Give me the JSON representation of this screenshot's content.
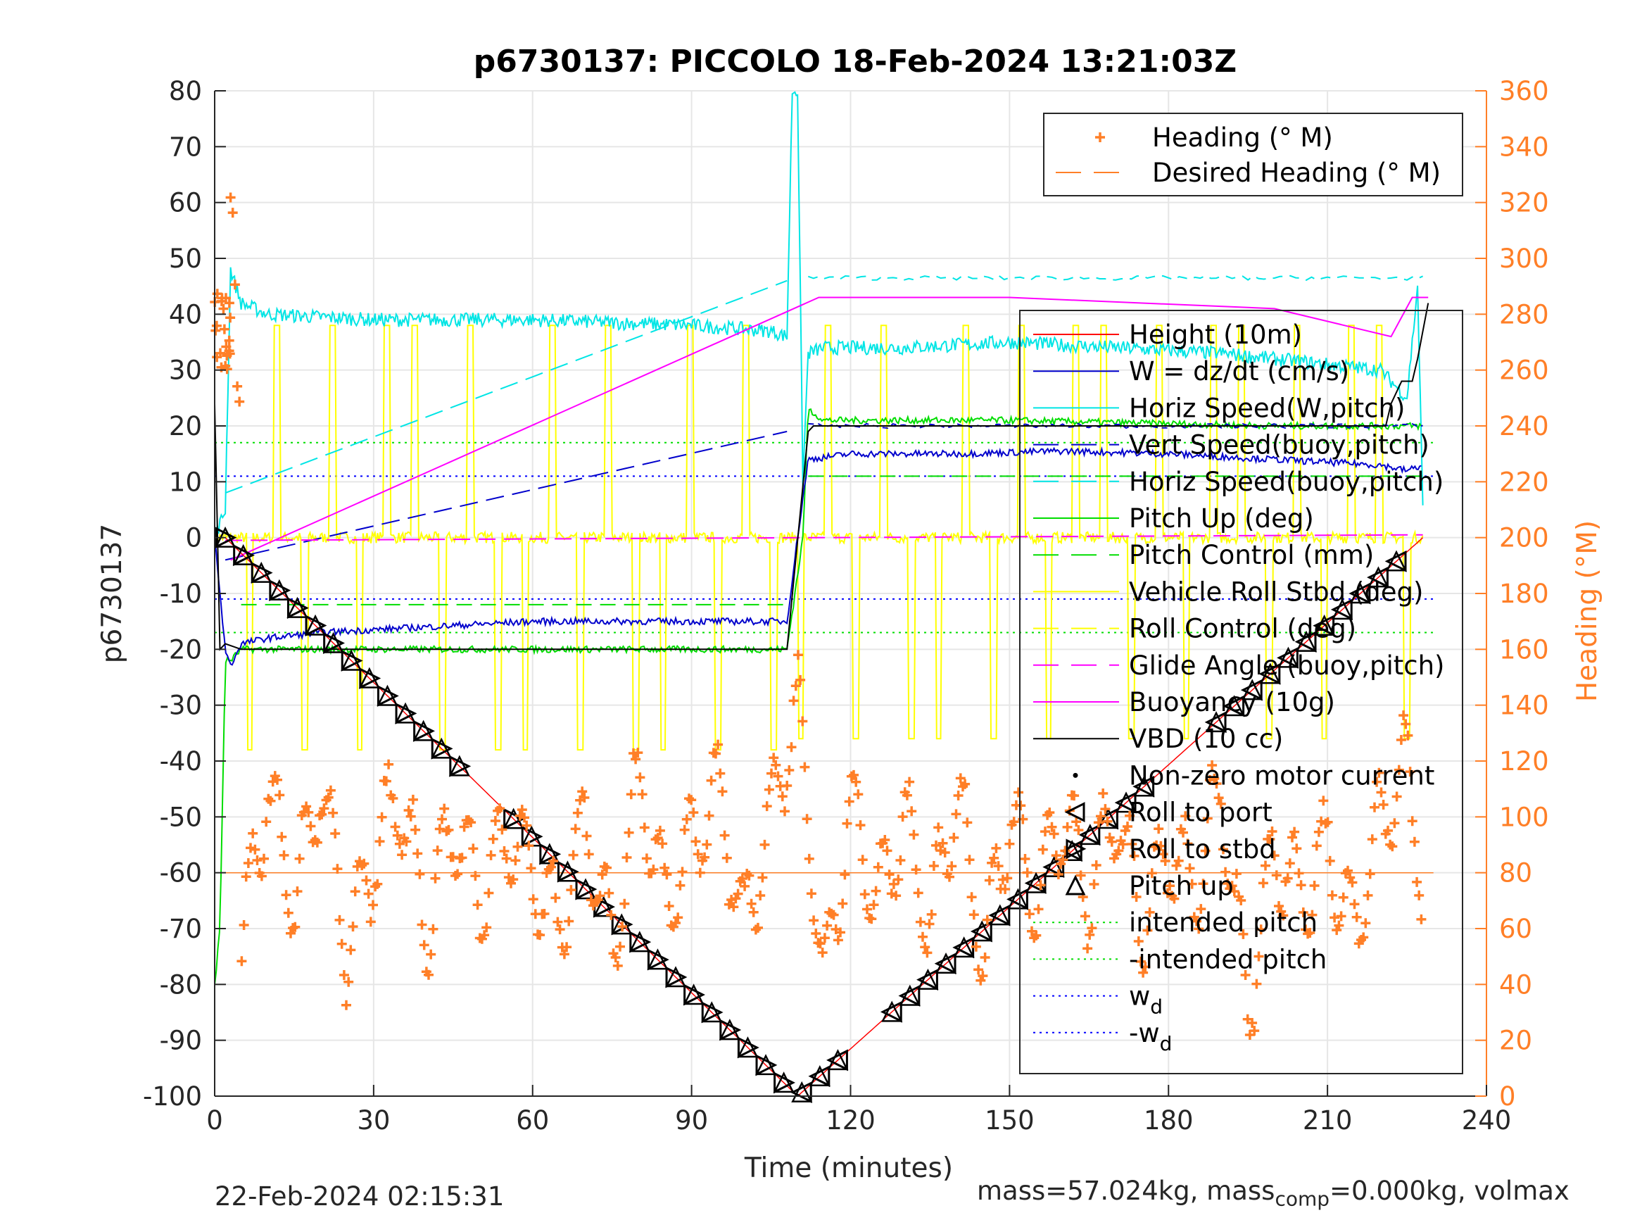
{
  "chart_data": {
    "type": "line",
    "title": "p6730137: PICCOLO 18-Feb-2024 13:21:03Z",
    "xlabel": "Time (minutes)",
    "ylabel": "p6730137",
    "ylabel_right": "Heading (°M)",
    "xlim": [
      0,
      240
    ],
    "ylim": [
      -100,
      80
    ],
    "ylim_right": [
      0,
      360
    ],
    "grid": true,
    "x_ticks": [
      "0",
      "30",
      "60",
      "90",
      "120",
      "150",
      "180",
      "210",
      "240"
    ],
    "y_ticks": [
      "80",
      "70",
      "60",
      "50",
      "40",
      "30",
      "20",
      "10",
      "0",
      "-10",
      "-20",
      "-30",
      "-40",
      "-50",
      "-60",
      "-70",
      "-80",
      "-90",
      "-100"
    ],
    "y_right_ticks": [
      "360",
      "340",
      "320",
      "300",
      "280",
      "260",
      "240",
      "220",
      "200",
      "180",
      "160",
      "140",
      "120",
      "100",
      "80",
      "60",
      "40",
      "20",
      "0"
    ],
    "legend_heading": {
      "placement": "top-right",
      "entries": [
        "Heading (° M)",
        "Desired Heading (° M)"
      ]
    },
    "legend_main": {
      "placement": "right",
      "entries": [
        "Height (10m)",
        "W = dz/dt (cm/s)",
        "Horiz Speed(W,pitch)",
        "Vert Speed(buoy,pitch)",
        "Horiz Speed(buoy,pitch)",
        "Pitch Up (deg)",
        "Pitch Control (mm)",
        "Vehicle Roll Stbd (deg)",
        "Roll Control (deg)",
        "Glide Angle (buoy,pitch)",
        "Buoyancy (10g)",
        "VBD (10 cc)",
        "Non-zero motor current",
        "Roll to port",
        "Roll to stbd",
        "Pitch up",
        "intended pitch",
        "-intended pitch",
        "w_d",
        "-w_d"
      ]
    },
    "colors": {
      "height": "#ff0000",
      "w": "#0000cc",
      "horiz_speed": "#00e5e5",
      "pitch": "#00dd00",
      "roll": "#ffff00",
      "glide": "#ff00ff",
      "buoyancy": "#ff00ff",
      "vbd": "#000000",
      "heading": "#ff7f27",
      "desired_heading": "#ff7f27",
      "wd": "#0000ff"
    },
    "series": [
      {
        "name": "Height (10m)",
        "x": [
          0,
          2,
          10,
          20,
          30,
          40,
          50,
          60,
          70,
          80,
          90,
          100,
          108,
          112,
          120,
          130,
          140,
          150,
          160,
          170,
          180,
          190,
          200,
          210,
          220,
          228,
          230
        ],
        "y": [
          0,
          -0.5,
          -8,
          -19,
          -31,
          -40,
          -50,
          -60,
          -69,
          -78,
          -88,
          -95,
          -100,
          -100,
          -93,
          -80,
          -72,
          -62,
          -57,
          -48,
          -40,
          -30,
          -22,
          -15,
          -5,
          0,
          0
        ]
      },
      {
        "name": "W = dz/dt (cm/s)",
        "x": [
          0,
          2,
          3,
          5,
          10,
          20,
          40,
          60,
          80,
          100,
          108,
          110,
          112,
          120,
          140,
          160,
          180,
          200,
          220,
          225,
          228
        ],
        "y": [
          0,
          -20,
          -23,
          -19,
          -18,
          -17,
          -16,
          -15,
          -15,
          -15,
          -15,
          0,
          14,
          15,
          15,
          15.5,
          15,
          14,
          13,
          12,
          13
        ]
      },
      {
        "name": "Horiz Speed(W,pitch)",
        "x": [
          0,
          2,
          3,
          5,
          10,
          30,
          60,
          90,
          105,
          108,
          109,
          110,
          111,
          112,
          115,
          130,
          150,
          170,
          190,
          210,
          220,
          225,
          227,
          228
        ],
        "y": [
          0,
          5,
          48,
          42,
          40,
          39,
          39,
          38,
          37,
          36,
          80,
          80,
          10,
          33,
          34,
          34,
          35,
          34,
          33,
          31,
          30,
          25,
          45,
          5
        ]
      },
      {
        "name": "Vert Speed(buoy,pitch)",
        "x": [
          2,
          108,
          112,
          228
        ],
        "y": [
          -4,
          19,
          20,
          20
        ]
      },
      {
        "name": "Horiz Speed(buoy,pitch)",
        "x": [
          2,
          108,
          112,
          228
        ],
        "y": [
          8,
          46,
          47,
          46
        ]
      },
      {
        "name": "Pitch Up (deg)",
        "x": [
          0,
          1,
          2,
          3,
          5,
          20,
          60,
          100,
          108,
          111,
          112,
          115,
          150,
          200,
          228
        ],
        "y": [
          -80,
          -70,
          -22,
          -22,
          -20,
          -20,
          -20,
          -20,
          -20,
          0,
          23,
          21,
          21,
          20,
          20
        ]
      },
      {
        "name": "Pitch Control (mm)",
        "x": [
          0,
          108,
          110,
          228
        ],
        "y": [
          -12,
          -12,
          11,
          11
        ]
      },
      {
        "name": "Vehicle Roll Stbd (deg)",
        "x": [
          0,
          228
        ],
        "y": [
          0,
          0
        ]
      },
      {
        "name": "Roll Control (deg)",
        "x": [
          0,
          228
        ],
        "y": [
          0,
          0
        ]
      },
      {
        "name": "Glide Angle (buoy,pitch)",
        "x": [
          2,
          228
        ],
        "y": [
          -0.5,
          0.5
        ]
      },
      {
        "name": "Buoyancy (10g)",
        "x": [
          3,
          114,
          150,
          200,
          222,
          226,
          229
        ],
        "y": [
          -4,
          43,
          43,
          41,
          36,
          43,
          43
        ]
      },
      {
        "name": "VBD (10 cc)",
        "x": [
          0,
          1,
          2,
          5,
          108,
          112,
          113,
          220,
          225,
          228,
          229
        ],
        "y": [
          24,
          -20,
          -19,
          -20,
          -20,
          19,
          20,
          20,
          28,
          28,
          42
        ]
      },
      {
        "name": "intended pitch",
        "x": [
          0,
          230
        ],
        "y": [
          17,
          17
        ]
      },
      {
        "name": "-intended pitch",
        "x": [
          0,
          230
        ],
        "y": [
          -17,
          -17
        ]
      },
      {
        "name": "w_d",
        "x": [
          0,
          230
        ],
        "y": [
          11,
          11
        ]
      },
      {
        "name": "-w_d",
        "x": [
          0,
          230
        ],
        "y": [
          -11,
          -11
        ]
      },
      {
        "name": "Heading (° M)",
        "axis": "right",
        "x": [
          0,
          1,
          2,
          3,
          5,
          8,
          10,
          15,
          20,
          25,
          30,
          35,
          40,
          45,
          50,
          55,
          60,
          65,
          70,
          75,
          80,
          85,
          90,
          95,
          100,
          105,
          110,
          115,
          120,
          125,
          130,
          135,
          140,
          145,
          150,
          155,
          160,
          165,
          170,
          175,
          180,
          185,
          190,
          195,
          200,
          205,
          210,
          215,
          220,
          225,
          228
        ],
        "y": [
          290,
          280,
          270,
          340,
          50,
          90,
          110,
          70,
          115,
          50,
          85,
          110,
          60,
          100,
          70,
          95,
          80,
          60,
          100,
          50,
          115,
          70,
          90,
          110,
          60,
          100,
          140,
          40,
          105,
          70,
          100,
          60,
          110,
          50,
          100,
          70,
          100,
          70,
          105,
          60,
          90,
          75,
          110,
          30,
          90,
          70,
          90,
          60,
          100,
          120,
          75
        ]
      },
      {
        "name": "Desired Heading (° M)",
        "axis": "right",
        "x": [
          0,
          230
        ],
        "y": [
          80,
          80
        ]
      }
    ]
  },
  "footer": {
    "date_label": "22-Feb-2024 02:15:31",
    "mass_prefix": "mass=57.024kg, mass",
    "mass_sub": "comp",
    "mass_suffix": "=0.000kg, volmax"
  }
}
